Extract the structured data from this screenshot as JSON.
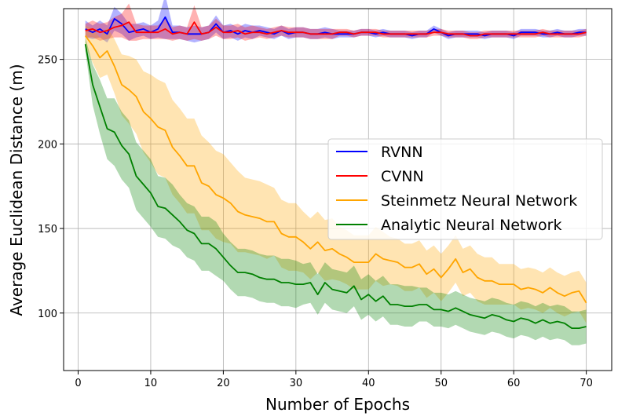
{
  "chart_data": {
    "type": "line",
    "title": "",
    "xlabel": "Number of Epochs",
    "ylabel": "Average Euclidean Distance (m)",
    "xlim": [
      -2,
      73.5
    ],
    "ylim": [
      66,
      280
    ],
    "xticks": [
      0,
      10,
      20,
      30,
      40,
      50,
      60,
      70
    ],
    "yticks": [
      100,
      150,
      200,
      250
    ],
    "grid": true,
    "legend_position": "center-right",
    "series": [
      {
        "name": "RVNN",
        "color": "#0000ff",
        "x": [
          1,
          2,
          3,
          4,
          5,
          6,
          7,
          8,
          9,
          10,
          11,
          12,
          13,
          14,
          15,
          16,
          17,
          18,
          19,
          20,
          21,
          22,
          23,
          24,
          25,
          26,
          27,
          28,
          29,
          30,
          31,
          32,
          33,
          34,
          35,
          36,
          37,
          38,
          39,
          40,
          41,
          42,
          43,
          44,
          45,
          46,
          47,
          48,
          49,
          50,
          51,
          52,
          53,
          54,
          55,
          56,
          57,
          58,
          59,
          60,
          61,
          62,
          63,
          64,
          65,
          66,
          67,
          68,
          69,
          70
        ],
        "values": [
          268,
          266,
          268,
          265,
          274,
          271,
          266,
          267,
          268,
          266,
          268,
          275,
          266,
          266,
          265,
          265,
          265,
          266,
          271,
          266,
          267,
          265,
          267,
          266,
          267,
          266,
          265,
          267,
          265,
          266,
          266,
          265,
          265,
          266,
          265,
          265,
          265,
          265,
          266,
          266,
          265,
          266,
          265,
          265,
          265,
          264,
          265,
          265,
          268,
          266,
          264,
          265,
          265,
          265,
          265,
          264,
          265,
          265,
          265,
          264,
          266,
          266,
          266,
          265,
          265,
          266,
          265,
          265,
          266,
          266
        ],
        "band": [
          5,
          4,
          5,
          5,
          7,
          6,
          5,
          4,
          4,
          4,
          5,
          13,
          4,
          4,
          4,
          5,
          4,
          4,
          5,
          4,
          4,
          4,
          4,
          4,
          3,
          3,
          3,
          3,
          3,
          3,
          3,
          3,
          3,
          3,
          3,
          2,
          2,
          2,
          2,
          2,
          2,
          2,
          2,
          2,
          2,
          2,
          2,
          2,
          2,
          2,
          2,
          2,
          2,
          2,
          2,
          2,
          2,
          2,
          2,
          2,
          2,
          2,
          2,
          2,
          2,
          2,
          2,
          2,
          2,
          2
        ]
      },
      {
        "name": "CVNN",
        "color": "#ff0000",
        "x": [
          1,
          2,
          3,
          4,
          5,
          6,
          7,
          8,
          9,
          10,
          11,
          12,
          13,
          14,
          15,
          16,
          17,
          18,
          19,
          20,
          21,
          22,
          23,
          24,
          25,
          26,
          27,
          28,
          29,
          30,
          31,
          32,
          33,
          34,
          35,
          36,
          37,
          38,
          39,
          40,
          41,
          42,
          43,
          44,
          45,
          46,
          47,
          48,
          49,
          50,
          51,
          52,
          53,
          54,
          55,
          56,
          57,
          58,
          59,
          60,
          61,
          62,
          63,
          64,
          65,
          66,
          67,
          68,
          69,
          70
        ],
        "values": [
          267,
          268,
          266,
          267,
          269,
          270,
          272,
          266,
          266,
          266,
          266,
          268,
          265,
          266,
          265,
          272,
          265,
          266,
          269,
          266,
          266,
          267,
          265,
          266,
          266,
          265,
          266,
          267,
          266,
          266,
          266,
          265,
          265,
          265,
          265,
          266,
          266,
          265,
          266,
          266,
          266,
          265,
          265,
          265,
          265,
          265,
          265,
          265,
          266,
          266,
          265,
          265,
          265,
          264,
          264,
          265,
          265,
          265,
          265,
          265,
          265,
          265,
          265,
          266,
          265,
          265,
          265,
          265,
          265,
          266
        ],
        "band": [
          4,
          5,
          5,
          5,
          6,
          7,
          11,
          5,
          4,
          4,
          4,
          6,
          4,
          4,
          4,
          10,
          4,
          4,
          5,
          4,
          4,
          4,
          4,
          4,
          3,
          3,
          3,
          3,
          3,
          3,
          3,
          3,
          3,
          3,
          3,
          2,
          2,
          2,
          2,
          2,
          2,
          2,
          2,
          2,
          2,
          2,
          2,
          2,
          2,
          2,
          2,
          2,
          2,
          2,
          2,
          2,
          2,
          2,
          2,
          2,
          2,
          2,
          2,
          2,
          2,
          2,
          2,
          2,
          2,
          2
        ]
      },
      {
        "name": "Steinmetz Neural Network",
        "color": "#ffa500",
        "x": [
          1,
          2,
          3,
          4,
          5,
          6,
          7,
          8,
          9,
          10,
          11,
          12,
          13,
          14,
          15,
          16,
          17,
          18,
          19,
          20,
          21,
          22,
          23,
          24,
          25,
          26,
          27,
          28,
          29,
          30,
          31,
          32,
          33,
          34,
          35,
          36,
          37,
          38,
          39,
          40,
          41,
          42,
          43,
          44,
          45,
          46,
          47,
          48,
          49,
          50,
          51,
          52,
          53,
          54,
          55,
          56,
          57,
          58,
          59,
          60,
          61,
          62,
          63,
          64,
          65,
          66,
          67,
          68,
          69,
          70
        ],
        "values": [
          264,
          258,
          251,
          255,
          246,
          235,
          232,
          228,
          219,
          215,
          210,
          208,
          198,
          193,
          187,
          187,
          177,
          175,
          170,
          168,
          165,
          160,
          158,
          157,
          156,
          154,
          154,
          147,
          145,
          145,
          142,
          138,
          142,
          137,
          138,
          135,
          133,
          130,
          130,
          130,
          135,
          132,
          131,
          130,
          127,
          127,
          129,
          123,
          126,
          121,
          126,
          132,
          124,
          126,
          121,
          119,
          119,
          117,
          117,
          117,
          114,
          115,
          114,
          112,
          115,
          112,
          110,
          112,
          113,
          106
        ],
        "band": [
          6,
          10,
          12,
          14,
          16,
          18,
          20,
          22,
          24,
          26,
          28,
          28,
          28,
          28,
          28,
          28,
          28,
          26,
          26,
          26,
          24,
          24,
          22,
          22,
          22,
          22,
          20,
          20,
          20,
          20,
          18,
          18,
          18,
          18,
          18,
          16,
          16,
          16,
          16,
          16,
          16,
          16,
          14,
          14,
          14,
          14,
          14,
          14,
          14,
          14,
          14,
          14,
          14,
          14,
          14,
          14,
          14,
          12,
          12,
          12,
          12,
          12,
          12,
          12,
          12,
          12,
          12,
          12,
          12,
          12
        ]
      },
      {
        "name": "Analytic Neural Network",
        "color": "#008000",
        "x": [
          1,
          2,
          3,
          4,
          5,
          6,
          7,
          8,
          9,
          10,
          11,
          12,
          13,
          14,
          15,
          16,
          17,
          18,
          19,
          20,
          21,
          22,
          23,
          24,
          25,
          26,
          27,
          28,
          29,
          30,
          31,
          32,
          33,
          34,
          35,
          36,
          37,
          38,
          39,
          40,
          41,
          42,
          43,
          44,
          45,
          46,
          47,
          48,
          49,
          50,
          51,
          52,
          53,
          54,
          55,
          56,
          57,
          58,
          59,
          60,
          61,
          62,
          63,
          64,
          65,
          66,
          67,
          68,
          69,
          70
        ],
        "values": [
          259,
          235,
          222,
          209,
          207,
          199,
          194,
          181,
          176,
          171,
          163,
          162,
          158,
          154,
          149,
          147,
          141,
          141,
          138,
          133,
          128,
          124,
          124,
          123,
          121,
          120,
          120,
          118,
          118,
          117,
          117,
          118,
          111,
          118,
          114,
          113,
          112,
          116,
          108,
          111,
          107,
          110,
          105,
          105,
          104,
          104,
          105,
          105,
          102,
          102,
          101,
          103,
          101,
          99,
          98,
          97,
          99,
          98,
          96,
          95,
          97,
          96,
          94,
          96,
          94,
          95,
          94,
          91,
          91,
          92
        ],
        "band": [
          4,
          12,
          16,
          18,
          20,
          20,
          20,
          20,
          20,
          20,
          18,
          18,
          18,
          16,
          16,
          16,
          16,
          16,
          16,
          14,
          14,
          14,
          14,
          14,
          14,
          14,
          14,
          14,
          14,
          14,
          12,
          12,
          12,
          12,
          12,
          12,
          12,
          12,
          12,
          12,
          12,
          12,
          12,
          12,
          12,
          12,
          10,
          10,
          10,
          10,
          10,
          10,
          10,
          10,
          10,
          10,
          10,
          10,
          10,
          10,
          10,
          10,
          10,
          10,
          10,
          10,
          10,
          10,
          10,
          10
        ]
      }
    ]
  }
}
